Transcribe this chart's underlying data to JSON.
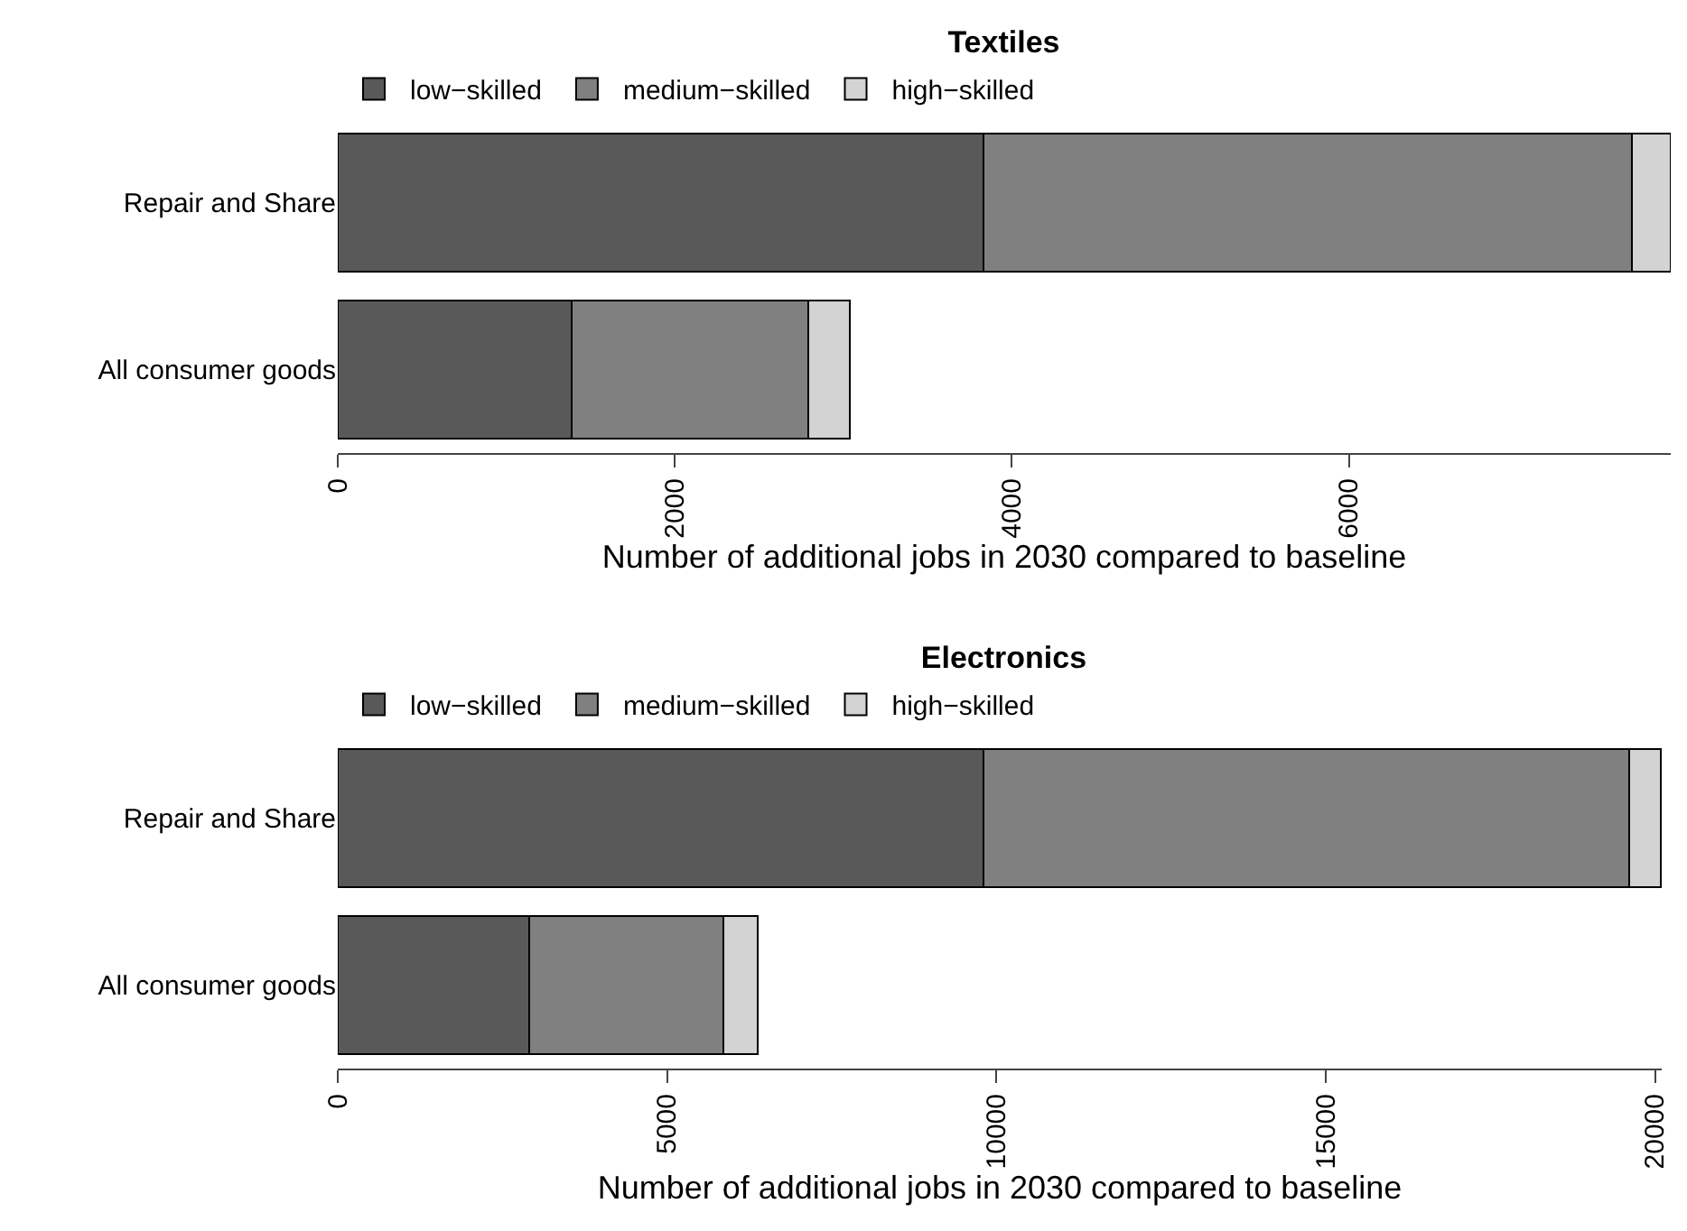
{
  "chart_data": [
    {
      "type": "bar",
      "title": "Textiles",
      "orientation": "horizontal",
      "stacked": true,
      "xlabel": "Number of additional jobs in 2030 compared to baseline",
      "categories": [
        "Repair and Share",
        "All consumer goods"
      ],
      "legend": "top left",
      "xlim": [
        0,
        7910
      ],
      "xticks": [
        0,
        2000,
        4000,
        6000
      ],
      "series": [
        {
          "name": "low−skilled",
          "color": "#595959",
          "values": [
            3830,
            1390
          ]
        },
        {
          "name": "medium−skilled",
          "color": "#808080",
          "values": [
            3850,
            1400
          ]
        },
        {
          "name": "high−skilled",
          "color": "#d3d3d3",
          "values": [
            230,
            250
          ]
        }
      ]
    },
    {
      "type": "bar",
      "title": "Electronics",
      "orientation": "horizontal",
      "stacked": true,
      "xlabel": "Number of additional jobs in 2030 compared to baseline",
      "categories": [
        "Repair and Share",
        "All consumer goods"
      ],
      "legend": "top left",
      "xlim": [
        0,
        20100
      ],
      "xticks": [
        0,
        5000,
        10000,
        15000,
        20000
      ],
      "series": [
        {
          "name": "low−skilled",
          "color": "#595959",
          "values": [
            9800,
            2910
          ]
        },
        {
          "name": "medium−skilled",
          "color": "#808080",
          "values": [
            9800,
            2940
          ]
        },
        {
          "name": "high−skilled",
          "color": "#d3d3d3",
          "values": [
            490,
            520
          ]
        }
      ]
    }
  ]
}
